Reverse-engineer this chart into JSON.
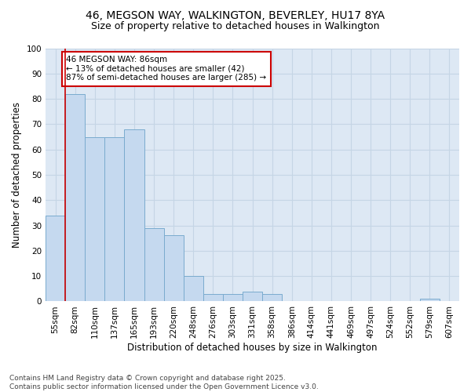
{
  "title1": "46, MEGSON WAY, WALKINGTON, BEVERLEY, HU17 8YA",
  "title2": "Size of property relative to detached houses in Walkington",
  "xlabel": "Distribution of detached houses by size in Walkington",
  "ylabel": "Number of detached properties",
  "categories": [
    "55sqm",
    "82sqm",
    "110sqm",
    "137sqm",
    "165sqm",
    "193sqm",
    "220sqm",
    "248sqm",
    "276sqm",
    "303sqm",
    "331sqm",
    "358sqm",
    "386sqm",
    "414sqm",
    "441sqm",
    "469sqm",
    "497sqm",
    "524sqm",
    "552sqm",
    "579sqm",
    "607sqm"
  ],
  "values": [
    34,
    82,
    65,
    65,
    68,
    29,
    26,
    10,
    3,
    3,
    4,
    3,
    0,
    0,
    0,
    0,
    0,
    0,
    0,
    1,
    0
  ],
  "bar_color": "#c5d9ef",
  "bar_edge_color": "#7aabce",
  "marker_line_color": "#cc0000",
  "annotation_text": "46 MEGSON WAY: 86sqm\n← 13% of detached houses are smaller (42)\n87% of semi-detached houses are larger (285) →",
  "annotation_box_color": "#ffffff",
  "annotation_box_edge_color": "#cc0000",
  "ylim": [
    0,
    100
  ],
  "yticks": [
    0,
    10,
    20,
    30,
    40,
    50,
    60,
    70,
    80,
    90,
    100
  ],
  "grid_color": "#c5d5e5",
  "bg_color": "#dde8f4",
  "footnote": "Contains HM Land Registry data © Crown copyright and database right 2025.\nContains public sector information licensed under the Open Government Licence v3.0.",
  "title_fontsize": 10,
  "subtitle_fontsize": 9,
  "tick_fontsize": 7.5,
  "ylabel_fontsize": 8.5,
  "xlabel_fontsize": 8.5,
  "footnote_fontsize": 6.5
}
